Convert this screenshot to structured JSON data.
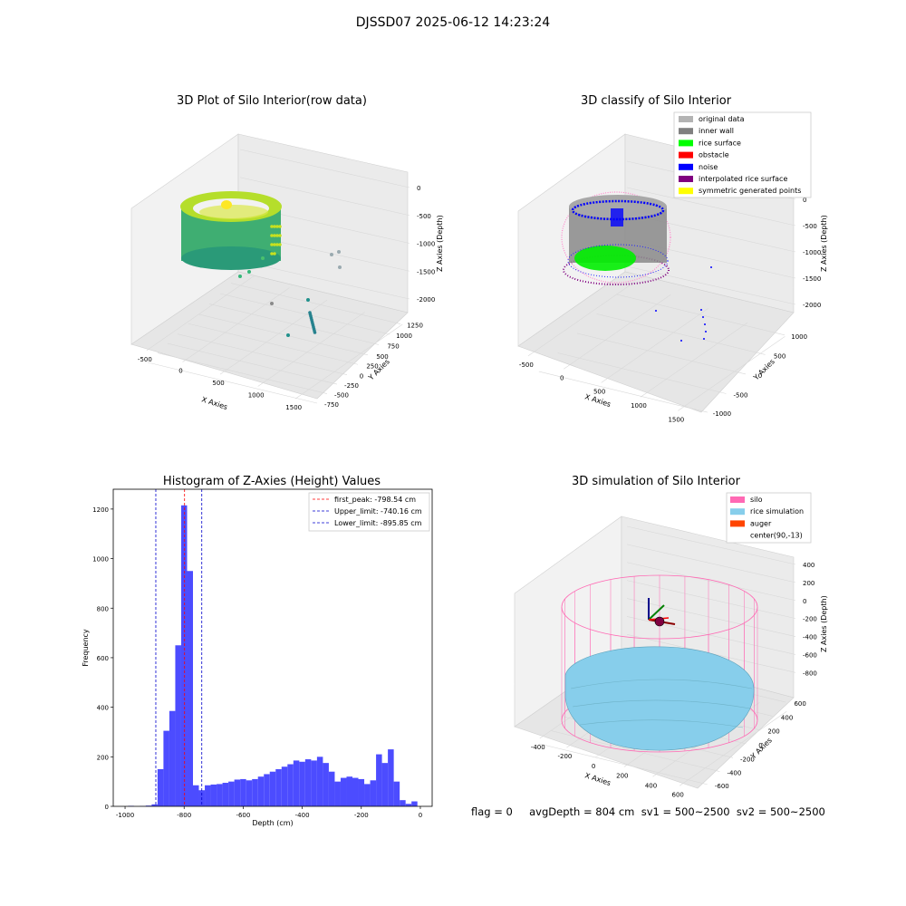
{
  "suptitle": "DJSSD07 2025-06-12 14:23:24",
  "footer": {
    "text": "flag = 0     avgDepth = 804 cm  sv1 = 500~2500  sv2 = 500~2500"
  },
  "chart_data": [
    {
      "type": "scatter",
      "title": "3D Plot of Silo Interior(row data)",
      "xlabel": "X Axies",
      "ylabel": "Y Axies",
      "zlabel": "Z Axies (Depth)",
      "xticks": [
        "-500",
        "0",
        "500",
        "1000",
        "1500"
      ],
      "yticks": [
        "-750",
        "-500",
        "-250",
        "0",
        "250",
        "500",
        "750",
        "1000",
        "1250"
      ],
      "zticks": [
        "0",
        "-500",
        "-1000",
        "-1500",
        "-2000"
      ],
      "colormap": "viridis",
      "description_points": "ring of points near z -300 to -900, scattered outliers up to x 1500"
    },
    {
      "type": "scatter",
      "title": "3D classify of Silo Interior",
      "xlabel": "X Axies",
      "ylabel": "Y Axies",
      "zlabel": "Z Axies (Depth)",
      "xticks": [
        "-500",
        "0",
        "500",
        "1000",
        "1500"
      ],
      "yticks": [
        "-1000",
        "-500",
        "0",
        "500",
        "1000"
      ],
      "zticks": [
        "0",
        "-500",
        "-1000",
        "-1500",
        "-2000"
      ],
      "legend_position": "top-right",
      "legend": [
        {
          "label": "original data",
          "color": "#b3b3b3"
        },
        {
          "label": "inner wall",
          "color": "#808080"
        },
        {
          "label": "rice surface",
          "color": "#00ff00"
        },
        {
          "label": "obstacle",
          "color": "#ff0000"
        },
        {
          "label": "noise",
          "color": "#0000ff"
        },
        {
          "label": "interpolated rice surface",
          "color": "#800080"
        },
        {
          "label": "symmetric generated points",
          "color": "#ffff00"
        }
      ]
    },
    {
      "type": "bar",
      "title": "Histogram of Z-Axies (Height) Values",
      "xlabel": "Depth (cm)",
      "ylabel": "Frequency",
      "xlim": [
        -1000,
        0
      ],
      "ylim": [
        0,
        1280
      ],
      "xticks": [
        "-1000",
        "-800",
        "-600",
        "-400",
        "-200",
        "0"
      ],
      "yticks": [
        "0",
        "200",
        "400",
        "600",
        "800",
        "1000",
        "1200"
      ],
      "bar_color": "#4c4cff",
      "bin_start": -990,
      "bin_width": 20,
      "values": [
        2,
        0,
        1,
        3,
        8,
        150,
        305,
        385,
        650,
        1215,
        950,
        85,
        65,
        85,
        88,
        90,
        95,
        100,
        108,
        110,
        105,
        110,
        120,
        130,
        140,
        150,
        160,
        170,
        185,
        180,
        190,
        185,
        200,
        175,
        140,
        100,
        115,
        120,
        115,
        110,
        90,
        105,
        210,
        175,
        230,
        100,
        25,
        10,
        20
      ],
      "lines": [
        {
          "label": "first_peak: -798.54 cm",
          "x": -798.54,
          "color": "#ff0000"
        },
        {
          "label": "Upper_limit: -740.16 cm",
          "x": -740.16,
          "color": "#0000cc"
        },
        {
          "label": "Lower_limit: -895.85 cm",
          "x": -895.85,
          "color": "#0000cc"
        }
      ],
      "legend_position": "top-right"
    },
    {
      "type": "surface",
      "title": "3D simulation of Silo Interior",
      "xlabel": "X Axies",
      "ylabel": "Y Axies",
      "zlabel": "Z Axies (Depth)",
      "xticks": [
        "-400",
        "-200",
        "0",
        "200",
        "400",
        "600"
      ],
      "yticks": [
        "-600",
        "-400",
        "-200",
        "0",
        "200",
        "400",
        "600"
      ],
      "zticks": [
        "400",
        "200",
        "0",
        "-200",
        "-400",
        "-600",
        "-800"
      ],
      "legend_position": "top-right",
      "legend": [
        {
          "label": "silo",
          "color": "#ff69b4"
        },
        {
          "label": "rice simulation",
          "color": "#87ceeb"
        },
        {
          "label": "auger",
          "color": "#ff4500"
        },
        {
          "label": "center(90,-13)",
          "color": "#ffffff"
        }
      ]
    }
  ]
}
